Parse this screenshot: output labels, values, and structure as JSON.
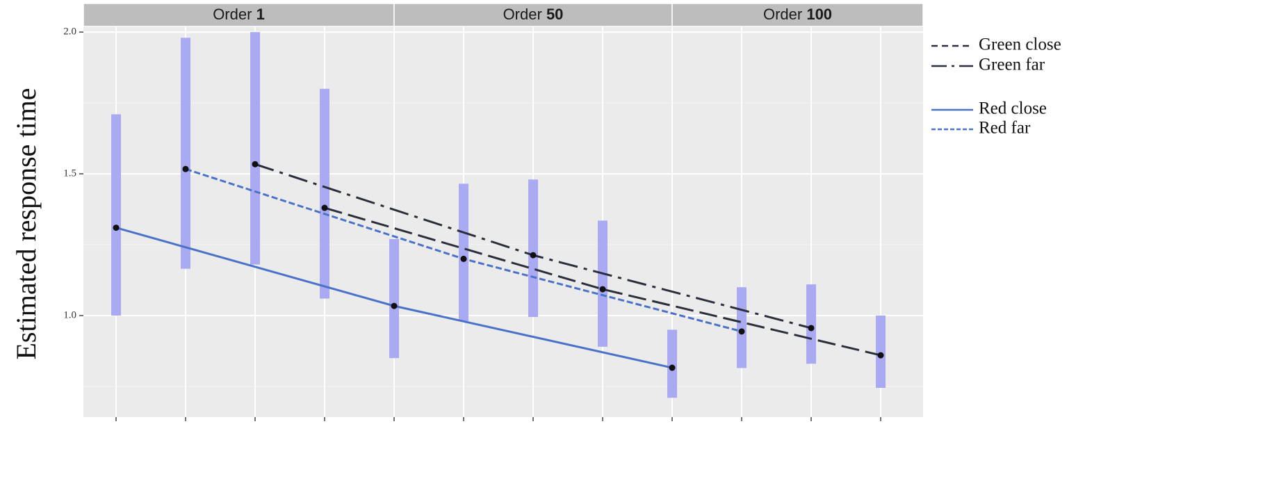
{
  "chart_data": {
    "type": "line",
    "ylabel": "Estimated response time",
    "xlim": [
      0.53,
      12.61
    ],
    "ylim": [
      0.642,
      2.02
    ],
    "xticks": [
      1,
      2,
      3,
      4,
      5,
      6,
      7,
      8,
      9,
      10,
      11,
      12
    ],
    "yticks": [
      {
        "value": 1.0,
        "label": "1.0"
      },
      {
        "value": 1.5,
        "label": "1.5"
      },
      {
        "value": 2.0,
        "label": "2.0"
      }
    ],
    "y_minor_grid": [
      0.75,
      1.25,
      1.75
    ],
    "grid": true,
    "legend": "right",
    "strips": [
      {
        "text": "Order",
        "bold": "1",
        "xrange": [
          0.53,
          5
        ]
      },
      {
        "text": "Order",
        "bold": "50",
        "xrange": [
          5,
          9
        ]
      },
      {
        "text": "Order",
        "bold": "100",
        "xrange": [
          9,
          12.61
        ]
      }
    ],
    "errorbar_color": "#aaaaf2",
    "series": [
      {
        "name": "Green close",
        "color": "#2b2f3b",
        "linestyle": "dashed",
        "x": [
          4,
          8,
          12
        ],
        "values": [
          1.38,
          1.093,
          0.86
        ],
        "low": [
          1.06,
          0.89,
          0.745
        ],
        "high": [
          1.8,
          1.335,
          1.0
        ]
      },
      {
        "name": "Green far",
        "color": "#2b2f3b",
        "linestyle": "dashdot",
        "x": [
          3,
          7,
          11
        ],
        "values": [
          1.534,
          1.213,
          0.956
        ],
        "low": [
          1.18,
          0.995,
          0.83
        ],
        "high": [
          2.0,
          1.48,
          1.11
        ]
      },
      {
        "name": "Red close",
        "color": "#4a72c8",
        "linestyle": "solid",
        "x": [
          1,
          5,
          9
        ],
        "values": [
          1.31,
          1.034,
          0.816
        ],
        "low": [
          1.0,
          0.85,
          0.71
        ],
        "high": [
          1.71,
          1.27,
          0.95
        ]
      },
      {
        "name": "Red far",
        "color": "#4a72c8",
        "linestyle": "dotted",
        "x": [
          2,
          6,
          10
        ],
        "values": [
          1.517,
          1.2,
          0.944
        ],
        "low": [
          1.165,
          0.98,
          0.815
        ],
        "high": [
          1.98,
          1.465,
          1.1
        ]
      }
    ]
  }
}
